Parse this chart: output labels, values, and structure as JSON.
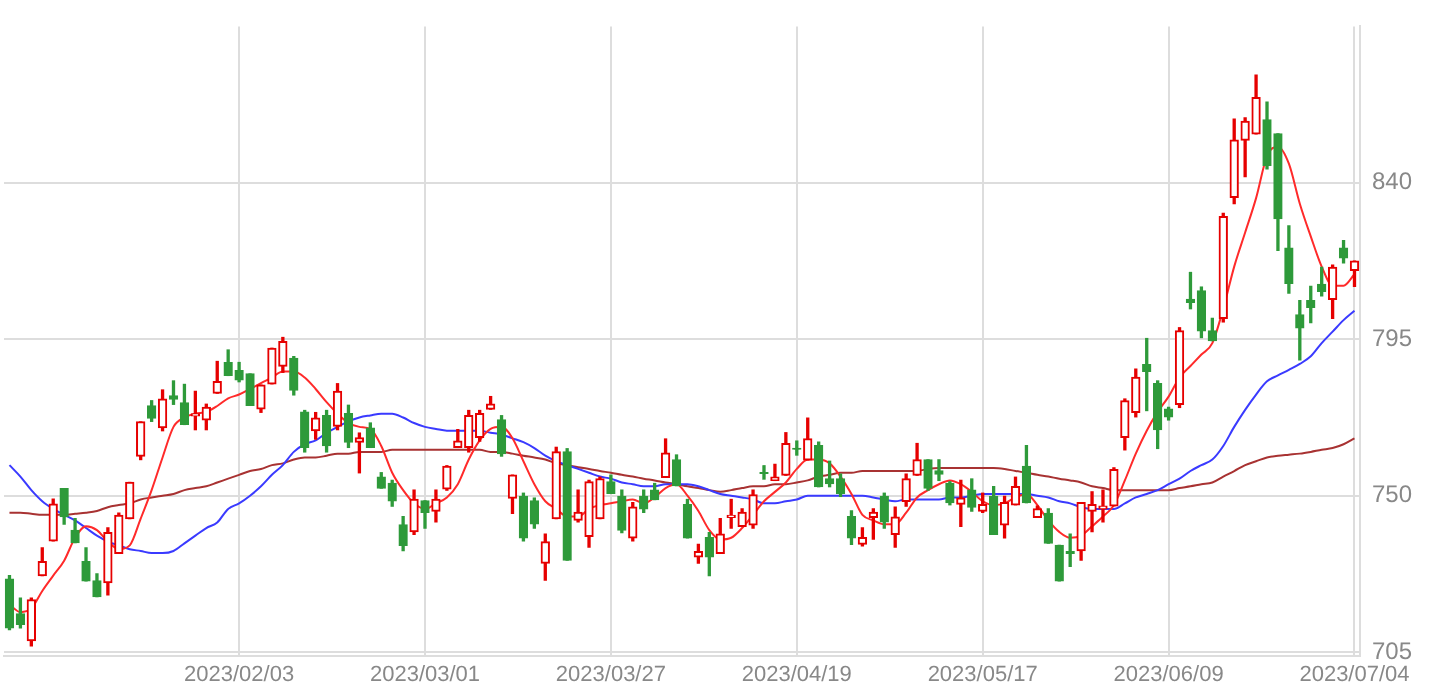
{
  "chart_data": {
    "type": "candlestick",
    "categories": [
      null,
      null,
      null,
      null,
      null,
      null,
      null,
      null,
      null,
      null,
      null,
      null,
      null,
      null,
      null,
      null,
      null,
      null,
      null,
      null,
      null,
      "2023/02/03",
      null,
      null,
      null,
      null,
      null,
      null,
      null,
      null,
      null,
      null,
      null,
      null,
      null,
      null,
      null,
      null,
      "2023/03/01",
      null,
      null,
      null,
      null,
      null,
      null,
      null,
      null,
      null,
      null,
      null,
      null,
      null,
      null,
      null,
      null,
      "2023/03/27",
      null,
      null,
      null,
      null,
      null,
      null,
      null,
      null,
      null,
      null,
      null,
      null,
      null,
      null,
      null,
      null,
      "2023/04/19",
      null,
      null,
      null,
      null,
      null,
      null,
      null,
      null,
      null,
      null,
      null,
      null,
      null,
      null,
      null,
      null,
      "2023/05/17",
      null,
      null,
      null,
      null,
      null,
      null,
      null,
      null,
      null,
      null,
      null,
      null,
      null,
      null,
      null,
      null,
      "2023/06/09",
      null,
      null,
      null,
      null,
      null,
      null,
      null,
      null,
      null,
      null,
      null,
      null,
      null,
      null,
      null,
      null,
      "2023/07/04"
    ],
    "ohlc": [
      [
        726,
        727,
        711.5,
        712
      ],
      [
        716,
        720.5,
        712,
        713
      ],
      [
        708.3,
        720.5,
        706.8,
        720
      ],
      [
        727,
        735,
        727,
        731
      ],
      [
        737,
        749,
        737,
        747.6
      ],
      [
        752,
        752,
        741.8,
        744
      ],
      [
        740,
        743.4,
        736.5,
        736.5
      ],
      [
        731,
        735,
        725.5,
        725.5
      ],
      [
        725.5,
        727.5,
        721,
        721
      ],
      [
        725,
        740.7,
        721.5,
        739.4
      ],
      [
        733.4,
        745,
        733.4,
        744.3
      ],
      [
        743.4,
        753.8,
        743.4,
        753.8
      ],
      [
        761.4,
        771.2,
        760.4,
        771.2
      ],
      [
        775.8,
        777.3,
        771.4,
        772.3
      ],
      [
        769.6,
        780.4,
        768.7,
        777.8
      ],
      [
        778.7,
        783,
        776.3,
        777.8
      ],
      [
        776.7,
        782,
        770.5,
        770.5
      ],
      [
        773,
        780,
        769,
        773.5
      ],
      [
        771.8,
        776.3,
        769,
        775.4
      ],
      [
        779.5,
        788.6,
        779.5,
        782.8
      ],
      [
        788.3,
        791.9,
        784.6,
        784.6
      ],
      [
        786,
        788.3,
        782.8,
        783.3
      ],
      [
        785,
        785,
        776,
        776
      ],
      [
        775,
        781.8,
        774,
        781.8
      ],
      [
        782.2,
        792.4,
        782.2,
        792.4
      ],
      [
        787.3,
        795.5,
        785.5,
        794.3
      ],
      [
        789.5,
        790,
        779,
        780.4
      ],
      [
        774,
        774.5,
        762.6,
        763.9
      ],
      [
        768.7,
        773.9,
        766.3,
        772.3
      ],
      [
        773,
        774.5,
        762.6,
        764.4
      ],
      [
        770,
        782.2,
        769,
        780
      ],
      [
        773.6,
        776,
        763.9,
        765.4
      ],
      [
        765.4,
        768,
        756.6,
        766.6
      ],
      [
        769.4,
        770.9,
        763.9,
        763.9
      ],
      [
        755.3,
        756.6,
        752.2,
        752.2
      ],
      [
        753.5,
        754.4,
        747,
        748.5
      ],
      [
        741.6,
        744,
        734.2,
        735.7
      ],
      [
        739.7,
        751.6,
        738.9,
        748.9
      ],
      [
        748.5,
        748.5,
        740.7,
        745.2
      ],
      [
        745.6,
        751.6,
        742.5,
        748.9
      ],
      [
        752,
        758.6,
        751.6,
        758.4
      ],
      [
        763.9,
        769,
        763.9,
        765.7
      ],
      [
        763.9,
        774.5,
        762.6,
        773
      ],
      [
        766.8,
        774.5,
        765.7,
        773.6
      ],
      [
        774.9,
        778.5,
        774.9,
        776.3
      ],
      [
        771.8,
        773,
        761.4,
        762.1
      ],
      [
        749.3,
        755.9,
        744.9,
        755.9
      ],
      [
        749.8,
        750.7,
        737,
        737.9
      ],
      [
        748.5,
        749.3,
        740.7,
        741.9
      ],
      [
        730.6,
        738.9,
        725.7,
        736.7
      ],
      [
        743.4,
        763.9,
        743.4,
        762.6
      ],
      [
        762.6,
        763.5,
        731.5,
        731.5
      ],
      [
        743,
        751.6,
        742.5,
        745.2
      ],
      [
        738.3,
        754.4,
        735.2,
        754
      ],
      [
        743.4,
        755.3,
        743.4,
        754.8
      ],
      [
        754,
        755.9,
        750.7,
        750.7
      ],
      [
        749.8,
        751.6,
        739.4,
        740.1
      ],
      [
        737.9,
        748,
        737,
        746.7
      ],
      [
        749.8,
        751.6,
        745.2,
        746.2
      ],
      [
        751.6,
        753.5,
        748.9,
        748.9
      ],
      [
        755.3,
        766.3,
        755.3,
        762.2
      ],
      [
        760.3,
        761.7,
        752.9,
        752.9
      ],
      [
        747.4,
        748.9,
        737.9,
        737.9
      ],
      [
        732.4,
        736,
        730.6,
        733.9
      ],
      [
        737.9,
        739.4,
        727,
        732.4
      ],
      [
        733.4,
        743.4,
        733.4,
        738.9
      ],
      [
        743.8,
        748.9,
        740.7,
        744.3
      ],
      [
        741.2,
        746.2,
        741.2,
        745.2
      ],
      [
        741.6,
        751.6,
        740.7,
        750.2
      ],
      [
        756.6,
        758.6,
        754.8,
        756.4
      ],
      [
        754.4,
        759,
        754.4,
        755.3
      ],
      [
        755.9,
        768.1,
        755.9,
        765
      ],
      [
        763.6,
        765.7,
        761.7,
        763.4
      ],
      [
        760.3,
        772.3,
        760.3,
        766.3
      ],
      [
        764.4,
        765.4,
        752.6,
        752.6
      ],
      [
        754.8,
        759.9,
        752.6,
        753.5
      ],
      [
        754.8,
        756.2,
        749.8,
        750.7
      ],
      [
        744,
        745.6,
        736,
        737.9
      ],
      [
        736.1,
        740.7,
        735.6,
        737.9
      ],
      [
        743.8,
        746.2,
        737.5,
        745.2
      ],
      [
        749.8,
        750.7,
        740.7,
        742.5
      ],
      [
        738.9,
        746.7,
        735.2,
        743.8
      ],
      [
        748.4,
        756.2,
        747,
        754.8
      ],
      [
        755.9,
        765,
        755.9,
        760.3
      ],
      [
        760.3,
        760.3,
        751.6,
        752.2
      ],
      [
        757.1,
        760.3,
        754.4,
        756.2
      ],
      [
        753.5,
        754,
        747.4,
        748
      ],
      [
        747.6,
        754.4,
        741.2,
        749.3
      ],
      [
        751.6,
        754.8,
        745.6,
        746.7
      ],
      [
        745.6,
        750.7,
        745.2,
        747.4
      ],
      [
        749.8,
        752.6,
        738.9,
        738.9
      ],
      [
        741.6,
        749.8,
        737.9,
        748
      ],
      [
        747.4,
        755.3,
        747.4,
        752.6
      ],
      [
        758.4,
        764.4,
        748,
        748
      ],
      [
        743.8,
        747,
        743.8,
        746.2
      ],
      [
        744.9,
        746.2,
        736.4,
        736.4
      ],
      [
        735.7,
        735.7,
        725.5,
        725.5
      ],
      [
        733.9,
        738.9,
        729.7,
        733.4
      ],
      [
        734.2,
        748,
        731.5,
        748
      ],
      [
        745.6,
        751.1,
        739.7,
        747.4
      ],
      [
        746.2,
        751.6,
        742.5,
        747
      ],
      [
        747.1,
        758,
        747.1,
        757.5
      ],
      [
        766.8,
        777.8,
        763.2,
        777.3
      ],
      [
        774,
        786.4,
        772.7,
        784
      ],
      [
        787.7,
        795.2,
        774.5,
        785.8
      ],
      [
        782.2,
        783,
        763.6,
        769
      ],
      [
        774.9,
        775.4,
        771.8,
        772.7
      ],
      [
        776.3,
        798.3,
        775.4,
        797.4
      ],
      [
        806.5,
        814.2,
        803.8,
        805.6
      ],
      [
        808.9,
        810,
        795.5,
        797.4
      ],
      [
        797.4,
        801,
        794.6,
        794.6
      ],
      [
        801,
        831.2,
        800,
        830.3
      ],
      [
        835.8,
        858.3,
        834,
        852.3
      ],
      [
        852.3,
        858.7,
        841.8,
        857.7
      ],
      [
        854.1,
        871,
        854.1,
        864.5
      ],
      [
        858.1,
        863.2,
        844,
        845
      ],
      [
        854.1,
        854.1,
        820.6,
        829.7
      ],
      [
        821.2,
        827.6,
        808.3,
        811.1
      ],
      [
        802,
        806.1,
        789.1,
        798.3
      ],
      [
        806.1,
        810.2,
        799.8,
        804.2
      ],
      [
        810.8,
        815.7,
        807.5,
        808.8
      ],
      [
        806.5,
        816.3,
        801,
        815.7
      ],
      [
        821.2,
        823.4,
        817,
        818.4
      ],
      [
        814.8,
        817.5,
        810.2,
        817.5
      ]
    ],
    "colors": [
      "#2e9a3a",
      "#2e9a3a",
      "#e60000",
      "#e60000",
      "#e60000",
      "#2e9a3a",
      "#2e9a3a",
      "#2e9a3a",
      "#2e9a3a",
      "#e60000",
      "#e60000",
      "#e60000",
      "#e60000",
      "#2e9a3a",
      "#e60000",
      "#2e9a3a",
      "#2e9a3a",
      "#e60000",
      "#e60000",
      "#e60000",
      "#2e9a3a",
      "#2e9a3a",
      "#2e9a3a",
      "#e60000",
      "#e60000",
      "#e60000",
      "#2e9a3a",
      "#2e9a3a",
      "#e60000",
      "#2e9a3a",
      "#e60000",
      "#2e9a3a",
      "#e60000",
      "#2e9a3a",
      "#2e9a3a",
      "#2e9a3a",
      "#2e9a3a",
      "#e60000",
      "#2e9a3a",
      "#e60000",
      "#e60000",
      "#e60000",
      "#e60000",
      "#e60000",
      "#e60000",
      "#2e9a3a",
      "#e60000",
      "#2e9a3a",
      "#2e9a3a",
      "#e60000",
      "#e60000",
      "#2e9a3a",
      "#e60000",
      "#e60000",
      "#e60000",
      "#2e9a3a",
      "#2e9a3a",
      "#e60000",
      "#2e9a3a",
      "#2e9a3a",
      "#e60000",
      "#2e9a3a",
      "#2e9a3a",
      "#e60000",
      "#2e9a3a",
      "#e60000",
      "#e60000",
      "#e60000",
      "#e60000",
      "#2e9a3a",
      "#e60000",
      "#e60000",
      "#2e9a3a",
      "#e60000",
      "#2e9a3a",
      "#2e9a3a",
      "#2e9a3a",
      "#2e9a3a",
      "#e60000",
      "#e60000",
      "#2e9a3a",
      "#e60000",
      "#e60000",
      "#e60000",
      "#2e9a3a",
      "#2e9a3a",
      "#2e9a3a",
      "#e60000",
      "#2e9a3a",
      "#e60000",
      "#2e9a3a",
      "#e60000",
      "#e60000",
      "#2e9a3a",
      "#e60000",
      "#2e9a3a",
      "#2e9a3a",
      "#2e9a3a",
      "#e60000",
      "#e60000",
      "#e60000",
      "#e60000",
      "#e60000",
      "#e60000",
      "#2e9a3a",
      "#2e9a3a",
      "#2e9a3a",
      "#e60000",
      "#2e9a3a",
      "#2e9a3a",
      "#2e9a3a",
      "#e60000",
      "#e60000",
      "#e60000",
      "#e60000",
      "#2e9a3a",
      "#2e9a3a",
      "#2e9a3a",
      "#2e9a3a",
      "#2e9a3a",
      "#2e9a3a",
      "#e60000",
      "#2e9a3a",
      "#e60000"
    ],
    "series": [
      {
        "type": "line",
        "color": "#ff2a2a",
        "values": [
          718.7,
          716.5,
          717.6,
          722.6,
          727,
          731.3,
          737.9,
          741.2,
          740.1,
          736.8,
          734.6,
          735.7,
          743.4,
          751.6,
          761,
          769.8,
          772.5,
          773.6,
          774.1,
          775.8,
          778,
          779.1,
          780.7,
          782.4,
          784,
          785.7,
          785.7,
          784,
          780.7,
          776.9,
          773.6,
          770.9,
          769.8,
          769.2,
          764.3,
          756.6,
          751.6,
          747.8,
          746.2,
          747.8,
          749.5,
          753.3,
          760.4,
          765.9,
          769.2,
          769.8,
          766.5,
          759.9,
          753.3,
          748.4,
          746.2,
          744,
          744,
          746.2,
          747.3,
          747.8,
          748.4,
          748.9,
          747.8,
          749.5,
          752.2,
          753.3,
          750,
          745.6,
          740.1,
          737.4,
          737.9,
          740.7,
          744.5,
          748.4,
          751.1,
          753.8,
          757.7,
          760.4,
          760.4,
          759.3,
          755.5,
          750.5,
          744.5,
          742.9,
          741.8,
          741.8,
          745.1,
          749.5,
          751.6,
          753.3,
          754.4,
          753.3,
          751.1,
          748.4,
          747.3,
          747.8,
          749.5,
          750.5,
          747.3,
          742.9,
          739.6,
          737.9,
          738.5,
          741.2,
          744,
          747.3,
          754.4,
          762.1,
          768.7,
          774.1,
          778.5,
          784,
          787.3,
          790.6,
          793.9,
          803.8,
          815.9,
          825.7,
          835.6,
          847.7,
          850.4,
          845.5,
          834,
          824.6,
          815.9,
          810.4,
          810.4,
          813.7
        ]
      },
      {
        "type": "line",
        "color": "#3a3aff",
        "values": [
          758.8,
          755.5,
          751.6,
          748.4,
          746.2,
          744.5,
          742.9,
          740.7,
          738.5,
          736.8,
          735.7,
          734.6,
          734.1,
          733.5,
          733.5,
          734.1,
          736.3,
          738.5,
          740.7,
          742.3,
          746.2,
          747.8,
          750,
          752.7,
          756,
          758.8,
          762.6,
          764.8,
          765.9,
          768.1,
          769.8,
          771.4,
          772.5,
          773.1,
          773.6,
          773.6,
          772.5,
          770.9,
          769.8,
          769.2,
          768.7,
          768.7,
          768.7,
          768.7,
          768.1,
          767.6,
          766.5,
          765.4,
          763.7,
          761.5,
          759.9,
          758.8,
          757.7,
          756.6,
          755.5,
          754.9,
          753.8,
          753.3,
          752.7,
          752.7,
          753.3,
          753.3,
          753.3,
          752.7,
          751.6,
          750.5,
          750,
          749.5,
          748.9,
          747.8,
          747.8,
          748.4,
          748.9,
          750,
          750,
          750,
          750,
          750,
          750,
          749.5,
          748.9,
          748.4,
          748.9,
          748.9,
          748.9,
          748.9,
          749.5,
          749.5,
          750,
          750.5,
          750.5,
          750.5,
          750.5,
          750.5,
          750,
          749.5,
          748.4,
          747.8,
          746.7,
          746.2,
          746.2,
          746.2,
          747.8,
          749.5,
          750.5,
          751.6,
          753.3,
          754.9,
          757.1,
          758.8,
          760.4,
          764.3,
          769.8,
          774.7,
          779.1,
          782.9,
          784.6,
          786.2,
          787.9,
          790.1,
          793.9,
          797.2,
          800.5,
          803.2
        ]
      },
      {
        "type": "line",
        "color": "#a83232",
        "values": [
          745.1,
          745.1,
          744.8,
          744.5,
          744.5,
          744.5,
          744.8,
          745.1,
          745.6,
          746.7,
          747.3,
          747.8,
          748.9,
          749.5,
          750,
          750.5,
          751.6,
          752.2,
          752.7,
          753.8,
          754.9,
          756,
          757.1,
          757.7,
          758.8,
          759.3,
          760.4,
          761,
          761,
          761.5,
          762.1,
          762.1,
          762.6,
          762.6,
          762.6,
          763.2,
          763.2,
          763.2,
          763.2,
          763.2,
          763.2,
          763.2,
          763.2,
          763.2,
          762.6,
          762.6,
          762.1,
          761.5,
          761,
          760.4,
          759.3,
          758.8,
          758.2,
          757.7,
          757.1,
          756.6,
          756,
          755.5,
          754.9,
          754.4,
          753.8,
          753.3,
          752.7,
          752.2,
          751.6,
          751.1,
          751.6,
          752.2,
          752.7,
          752.7,
          753.3,
          753.3,
          753.8,
          754.4,
          755.5,
          756,
          756.6,
          756.6,
          757.1,
          757.1,
          757.1,
          757.1,
          757.1,
          757.1,
          757.7,
          758,
          758,
          758,
          758,
          758,
          758,
          757.7,
          757.1,
          756.6,
          756,
          755.5,
          754.9,
          754.4,
          753.8,
          752.7,
          752.2,
          751.6,
          751.6,
          751.6,
          751.6,
          751.6,
          751.6,
          752.2,
          752.7,
          753.3,
          753.8,
          755.5,
          757.1,
          758.8,
          759.9,
          761,
          761.5,
          761.8,
          762.1,
          762.6,
          763.2,
          763.7,
          764.8,
          766.5
        ]
      }
    ],
    "ylim": [
      704,
      885
    ],
    "yticks": [
      705,
      750,
      795,
      840
    ],
    "grid": true
  }
}
